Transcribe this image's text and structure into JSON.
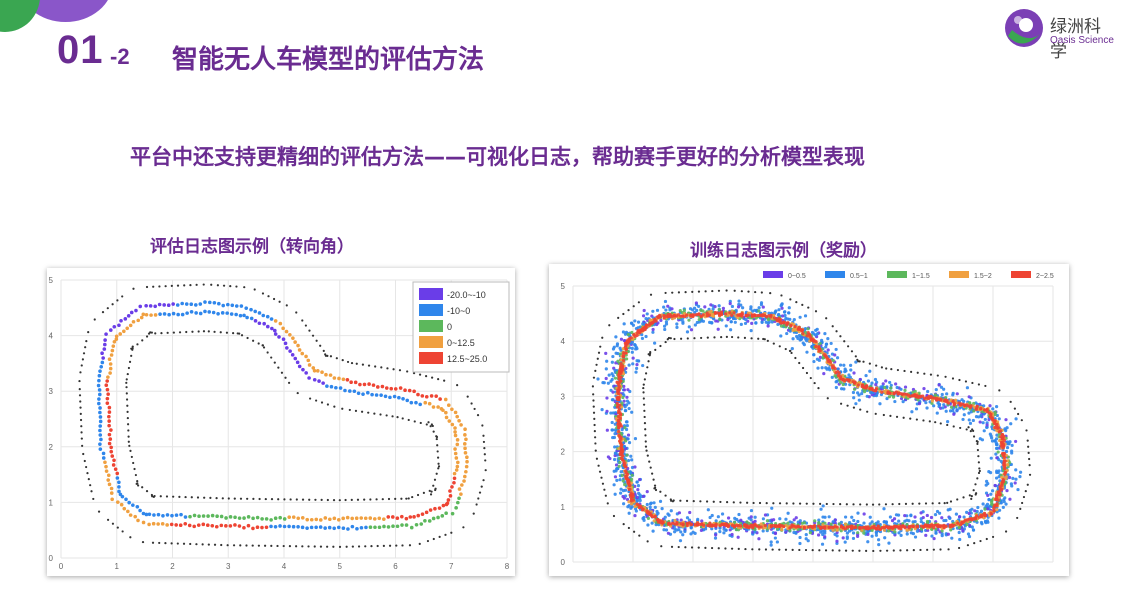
{
  "header": {
    "section_number": "01",
    "section_sub": "-2",
    "title": "智能无人车模型的评估方法",
    "logo_cn": "绿洲科学",
    "logo_en": "Oasis Science"
  },
  "subtitle": "平台中还支持更精细的评估方法——可视化日志，帮助赛手更好的分析模型表现",
  "chart_data": [
    {
      "type": "scatter",
      "title": "评估日志图示例（转向角）",
      "xlim": [
        0,
        8
      ],
      "ylim": [
        0,
        5
      ],
      "x_ticks": [
        "0",
        "1",
        "2",
        "3",
        "4",
        "5",
        "6",
        "7",
        "8"
      ],
      "y_ticks": [
        "0",
        "1",
        "2",
        "3",
        "4",
        "5"
      ],
      "grid": true,
      "legend_position": "top-right",
      "colors": {
        "track": "#333333"
      },
      "legend": [
        {
          "label": "-20.0~-10",
          "color": "#6a3de8"
        },
        {
          "label": "-10~0",
          "color": "#2f86eb"
        },
        {
          "label": "0",
          "color": "#5cb85c"
        },
        {
          "label": "0~12.5",
          "color": "#f0a040"
        },
        {
          "label": "12.5~25.0",
          "color": "#ee4433"
        }
      ]
    },
    {
      "type": "scatter",
      "title": "训练日志图示例（奖励）",
      "xlim": [
        0,
        8
      ],
      "ylim": [
        0,
        5
      ],
      "y_ticks": [
        "0",
        "1",
        "2",
        "3",
        "4",
        "5"
      ],
      "grid": true,
      "legend_position": "top",
      "colors": {
        "track": "#333333"
      },
      "legend": [
        {
          "label": "0~0.5",
          "color": "#6a3de8"
        },
        {
          "label": "0.5~1",
          "color": "#2f86eb"
        },
        {
          "label": "1~1.5",
          "color": "#5cb85c"
        },
        {
          "label": "1.5~2",
          "color": "#f0a040"
        },
        {
          "label": "2~2.5",
          "color": "#ee4433"
        }
      ]
    }
  ]
}
